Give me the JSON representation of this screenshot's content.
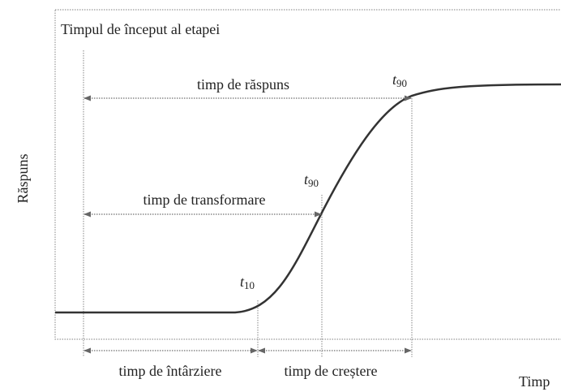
{
  "diagram": {
    "step_start_label": "Timpul de început al etapei",
    "y_axis_label": "Răspuns",
    "x_axis_label": "Timp",
    "response_time": {
      "label": "timp de răspuns",
      "marker": {
        "letter": "t",
        "subscript": "90"
      }
    },
    "transformation_time": {
      "label": "timp de transformare",
      "marker": {
        "letter": "t",
        "subscript": "90"
      }
    },
    "rise_start": {
      "marker": {
        "letter": "t",
        "subscript": "10"
      }
    },
    "delay_time": {
      "label": "timp de întârziere"
    },
    "rise_time": {
      "label": "timp de creștere"
    }
  }
}
